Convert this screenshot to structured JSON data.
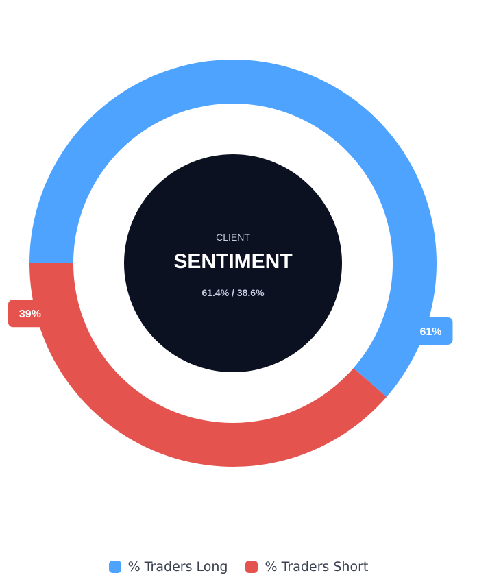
{
  "chart_data": {
    "type": "pie",
    "variant": "donut",
    "center": {
      "kicker": "CLIENT",
      "title": "SENTIMENT",
      "ratio": "61.4% / 38.6%"
    },
    "series": [
      {
        "name": "% Traders Long",
        "value": 61.4,
        "label": "61%",
        "color": "#4ea3ff"
      },
      {
        "name": "% Traders Short",
        "value": 38.6,
        "label": "39%",
        "color": "#e5534e"
      }
    ],
    "legend_position": "bottom",
    "center_color": "#0b1120"
  }
}
